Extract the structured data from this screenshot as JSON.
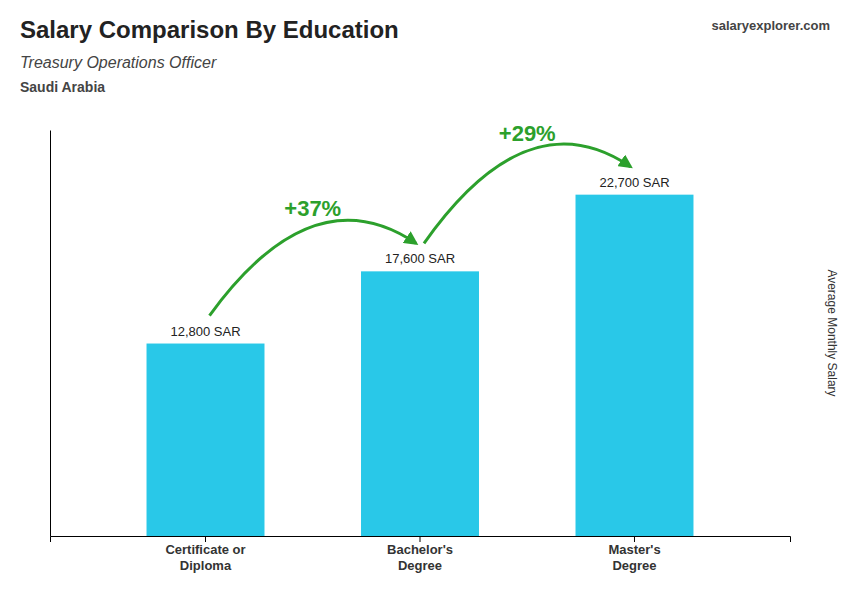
{
  "chart_data": {
    "type": "bar",
    "title": "Salary Comparison By Education",
    "subtitle": [
      "Treasury Operations Officer",
      "Saudi Arabia"
    ],
    "categories": [
      "Certificate or\nDiploma",
      "Bachelor's\nDegree",
      "Master's\nDegree"
    ],
    "values": [
      12800,
      17600,
      22700
    ],
    "value_labels": [
      "12,800 SAR",
      "17,600 SAR",
      "22,700 SAR"
    ],
    "data_labels": true,
    "annotations": [
      "+37%",
      "+29%",
      "salaryexplorer.com"
    ],
    "ylabel": "Average Monthly Salary",
    "color": "#29c8e8",
    "ylim": [
      0,
      27000
    ],
    "tick_labels": "x",
    "grid": false
  }
}
